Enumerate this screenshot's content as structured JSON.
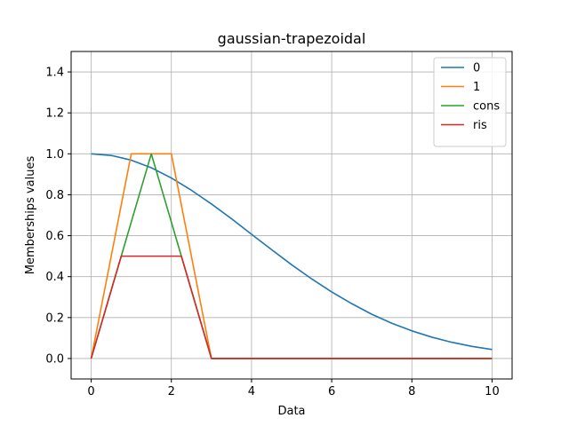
{
  "chart_data": {
    "type": "line",
    "title": "gaussian-trapezoidal",
    "xlabel": "Data",
    "ylabel": "Memberships values",
    "xlim": [
      -0.5,
      10.5
    ],
    "ylim": [
      -0.1,
      1.5
    ],
    "xticks": [
      0,
      2,
      4,
      6,
      8,
      10
    ],
    "yticks": [
      0.0,
      0.2,
      0.4,
      0.6,
      0.8,
      1.0,
      1.2,
      1.4
    ],
    "xtick_labels": [
      "0",
      "2",
      "4",
      "6",
      "8",
      "10"
    ],
    "ytick_labels": [
      "0.0",
      "0.2",
      "0.4",
      "0.6",
      "0.8",
      "1.0",
      "1.2",
      "1.4"
    ],
    "grid": true,
    "legend_position": "top-right",
    "series": [
      {
        "name": "0",
        "color": "#1f77b4",
        "x": [
          0,
          0.5,
          1,
          1.5,
          2,
          2.5,
          3,
          3.5,
          4,
          4.5,
          5,
          5.5,
          6,
          6.5,
          7,
          7.5,
          8,
          8.5,
          9,
          9.5,
          10
        ],
        "y": [
          1.0,
          0.992,
          0.969,
          0.932,
          0.882,
          0.822,
          0.755,
          0.683,
          0.607,
          0.532,
          0.458,
          0.389,
          0.325,
          0.268,
          0.216,
          0.172,
          0.135,
          0.104,
          0.079,
          0.059,
          0.044
        ]
      },
      {
        "name": "1",
        "color": "#ff7f0e",
        "x": [
          0,
          1,
          2,
          3,
          10
        ],
        "y": [
          0,
          1,
          1,
          0,
          0
        ]
      },
      {
        "name": "cons",
        "color": "#2ca02c",
        "x": [
          0,
          0.75,
          1.5,
          2.25,
          3,
          10
        ],
        "y": [
          0,
          0.5,
          1.0,
          0.5,
          0,
          0
        ]
      },
      {
        "name": "ris",
        "color": "#d62728",
        "x": [
          0,
          0.75,
          2.25,
          3,
          10
        ],
        "y": [
          0,
          0.5,
          0.5,
          0,
          0
        ]
      }
    ]
  }
}
